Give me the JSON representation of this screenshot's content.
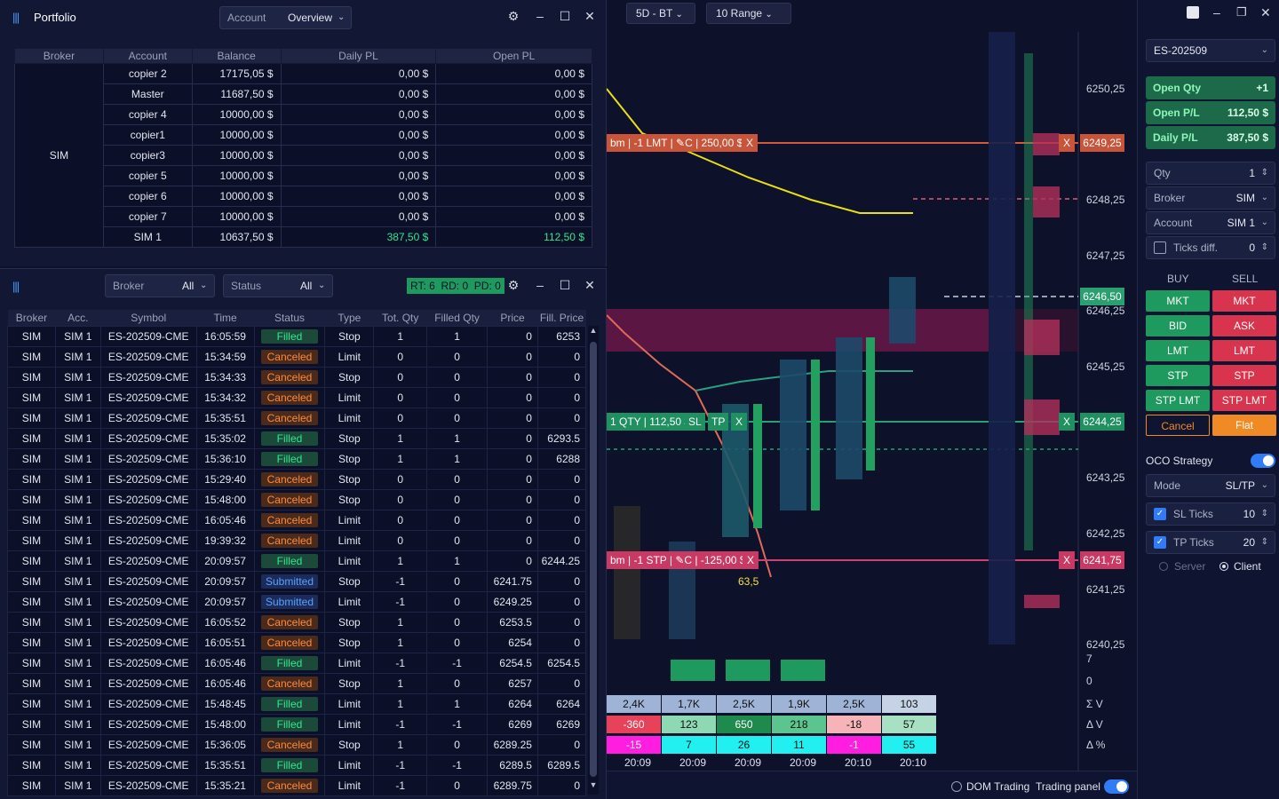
{
  "toolbar": {
    "period": "5D - BT",
    "range": "10 Range"
  },
  "portfolio": {
    "title": "Portfolio",
    "dropdown_label": "Account",
    "dropdown_value": "Overview",
    "columns": [
      "Broker",
      "Account",
      "Balance",
      "Daily PL",
      "Open PL"
    ],
    "broker": "SIM",
    "rows": [
      {
        "account": "copier 2",
        "balance": "17175,05 $",
        "daily": "0,00 $",
        "open": "0,00 $"
      },
      {
        "account": "Master",
        "balance": "11687,50 $",
        "daily": "0,00 $",
        "open": "0,00 $"
      },
      {
        "account": "copier 4",
        "balance": "10000,00 $",
        "daily": "0,00 $",
        "open": "0,00 $"
      },
      {
        "account": "copier1",
        "balance": "10000,00 $",
        "daily": "0,00 $",
        "open": "0,00 $"
      },
      {
        "account": "copier3",
        "balance": "10000,00 $",
        "daily": "0,00 $",
        "open": "0,00 $"
      },
      {
        "account": "copier 5",
        "balance": "10000,00 $",
        "daily": "0,00 $",
        "open": "0,00 $"
      },
      {
        "account": "copier 6",
        "balance": "10000,00 $",
        "daily": "0,00 $",
        "open": "0,00 $"
      },
      {
        "account": "copier 7",
        "balance": "10000,00 $",
        "daily": "0,00 $",
        "open": "0,00 $"
      },
      {
        "account": "SIM 1",
        "balance": "10637,50 $",
        "daily": "387,50 $",
        "open": "112,50 $"
      }
    ]
  },
  "orders": {
    "broker_label": "Broker",
    "broker_value": "All",
    "status_label": "Status",
    "status_value": "All",
    "counters": "RT: 6  RD: 0  PD: 0",
    "columns": [
      "Broker",
      "Acc.",
      "Symbol",
      "Time",
      "Status",
      "Type",
      "Tot. Qty",
      "Filled Qty",
      "Price",
      "Fill. Price"
    ],
    "rows": [
      [
        "SIM",
        "SIM 1",
        "ES-202509-CME",
        "16:05:59",
        "Filled",
        "Stop",
        "1",
        "1",
        "0",
        "6253"
      ],
      [
        "SIM",
        "SIM 1",
        "ES-202509-CME",
        "15:34:59",
        "Canceled",
        "Limit",
        "0",
        "0",
        "0",
        "0"
      ],
      [
        "SIM",
        "SIM 1",
        "ES-202509-CME",
        "15:34:33",
        "Canceled",
        "Stop",
        "0",
        "0",
        "0",
        "0"
      ],
      [
        "SIM",
        "SIM 1",
        "ES-202509-CME",
        "15:34:32",
        "Canceled",
        "Limit",
        "0",
        "0",
        "0",
        "0"
      ],
      [
        "SIM",
        "SIM 1",
        "ES-202509-CME",
        "15:35:51",
        "Canceled",
        "Limit",
        "0",
        "0",
        "0",
        "0"
      ],
      [
        "SIM",
        "SIM 1",
        "ES-202509-CME",
        "15:35:02",
        "Filled",
        "Stop",
        "1",
        "1",
        "0",
        "6293.5"
      ],
      [
        "SIM",
        "SIM 1",
        "ES-202509-CME",
        "15:36:10",
        "Filled",
        "Stop",
        "1",
        "1",
        "0",
        "6288"
      ],
      [
        "SIM",
        "SIM 1",
        "ES-202509-CME",
        "15:29:40",
        "Canceled",
        "Stop",
        "0",
        "0",
        "0",
        "0"
      ],
      [
        "SIM",
        "SIM 1",
        "ES-202509-CME",
        "15:48:00",
        "Canceled",
        "Stop",
        "0",
        "0",
        "0",
        "0"
      ],
      [
        "SIM",
        "SIM 1",
        "ES-202509-CME",
        "16:05:46",
        "Canceled",
        "Limit",
        "0",
        "0",
        "0",
        "0"
      ],
      [
        "SIM",
        "SIM 1",
        "ES-202509-CME",
        "19:39:32",
        "Canceled",
        "Limit",
        "0",
        "0",
        "0",
        "0"
      ],
      [
        "SIM",
        "SIM 1",
        "ES-202509-CME",
        "20:09:57",
        "Filled",
        "Limit",
        "1",
        "1",
        "0",
        "6244.25"
      ],
      [
        "SIM",
        "SIM 1",
        "ES-202509-CME",
        "20:09:57",
        "Submitted",
        "Stop",
        "-1",
        "0",
        "6241.75",
        "0"
      ],
      [
        "SIM",
        "SIM 1",
        "ES-202509-CME",
        "20:09:57",
        "Submitted",
        "Limit",
        "-1",
        "0",
        "6249.25",
        "0"
      ],
      [
        "SIM",
        "SIM 1",
        "ES-202509-CME",
        "16:05:52",
        "Canceled",
        "Stop",
        "1",
        "0",
        "6253.5",
        "0"
      ],
      [
        "SIM",
        "SIM 1",
        "ES-202509-CME",
        "16:05:51",
        "Canceled",
        "Stop",
        "1",
        "0",
        "6254",
        "0"
      ],
      [
        "SIM",
        "SIM 1",
        "ES-202509-CME",
        "16:05:46",
        "Filled",
        "Limit",
        "-1",
        "-1",
        "6254.5",
        "6254.5"
      ],
      [
        "SIM",
        "SIM 1",
        "ES-202509-CME",
        "16:05:46",
        "Canceled",
        "Stop",
        "1",
        "0",
        "6257",
        "0"
      ],
      [
        "SIM",
        "SIM 1",
        "ES-202509-CME",
        "15:48:45",
        "Filled",
        "Limit",
        "1",
        "1",
        "6264",
        "6264"
      ],
      [
        "SIM",
        "SIM 1",
        "ES-202509-CME",
        "15:48:00",
        "Filled",
        "Limit",
        "-1",
        "-1",
        "6269",
        "6269"
      ],
      [
        "SIM",
        "SIM 1",
        "ES-202509-CME",
        "15:36:05",
        "Canceled",
        "Stop",
        "1",
        "0",
        "6289.25",
        "0"
      ],
      [
        "SIM",
        "SIM 1",
        "ES-202509-CME",
        "15:35:51",
        "Filled",
        "Limit",
        "-1",
        "-1",
        "6289.5",
        "6289.5"
      ],
      [
        "SIM",
        "SIM 1",
        "ES-202509-CME",
        "15:35:21",
        "Canceled",
        "Limit",
        "-1",
        "0",
        "6289.75",
        "0"
      ]
    ]
  },
  "chart": {
    "price_labels": [
      "6250,25",
      "6248,25",
      "6247,25",
      "6246,25",
      "6245,25",
      "6243,25",
      "6242,25",
      "6241,25",
      "6240,25"
    ],
    "current_price": "6246,50",
    "tp_price": "6249,25",
    "sl_price": "6241,75",
    "entry_price": "6244,25",
    "tp_line_label": "bm | -1 LMT | ✎C | 250,00 $",
    "sl_line_label": "bm | -1 STP | ✎C | -125,00 $",
    "pos_line_label": "1 QTY | 112,50 $",
    "pos_sl": "SL",
    "pos_tp": "TP",
    "close_x": "X",
    "vol_after": "7",
    "vol_zero": "0",
    "stats": {
      "sum_v": [
        "2,4K",
        "1,7K",
        "2,5K",
        "1,9K",
        "2,5K",
        "103"
      ],
      "delta_v": [
        "-360",
        "123",
        "650",
        "218",
        "-18",
        "57"
      ],
      "delta_pct": [
        "-15",
        "7",
        "26",
        "11",
        "-1",
        "55"
      ],
      "times": [
        "20:09",
        "20:09",
        "20:09",
        "20:09",
        "20:10",
        "20:10"
      ],
      "labels": [
        "Σ V",
        "Δ V",
        "Δ %"
      ]
    },
    "annotation": "63,5"
  },
  "footer": {
    "dom_trading": "DOM Trading",
    "trading_panel": "Trading panel"
  },
  "trade_panel": {
    "symbol": "ES-202509",
    "open_qty_label": "Open Qty",
    "open_qty": "+1",
    "open_pl_label": "Open P/L",
    "open_pl": "112,50 $",
    "daily_pl_label": "Daily P/L",
    "daily_pl": "387,50 $",
    "qty_label": "Qty",
    "qty": "1",
    "broker_label": "Broker",
    "broker": "SIM",
    "account_label": "Account",
    "account": "SIM 1",
    "ticks_label": "Ticks diff.",
    "ticks": "0",
    "buy_label": "BUY",
    "sell_label": "SELL",
    "buttons": [
      [
        "MKT",
        "MKT"
      ],
      [
        "BID",
        "ASK"
      ],
      [
        "LMT",
        "LMT"
      ],
      [
        "STP",
        "STP"
      ],
      [
        "STP LMT",
        "STP LMT"
      ]
    ],
    "cancel": "Cancel",
    "flat": "Flat",
    "oco_label": "OCO Strategy",
    "mode_label": "Mode",
    "mode": "SL/TP",
    "sl_label": "SL Ticks",
    "sl": "10",
    "tp_label": "TP Ticks",
    "tp": "20",
    "server": "Server",
    "client": "Client",
    "colors": {
      "buy": "#1f9a5e",
      "sell": "#d9344e",
      "flat": "#f08a24",
      "accent": "#2f7cf6"
    }
  }
}
